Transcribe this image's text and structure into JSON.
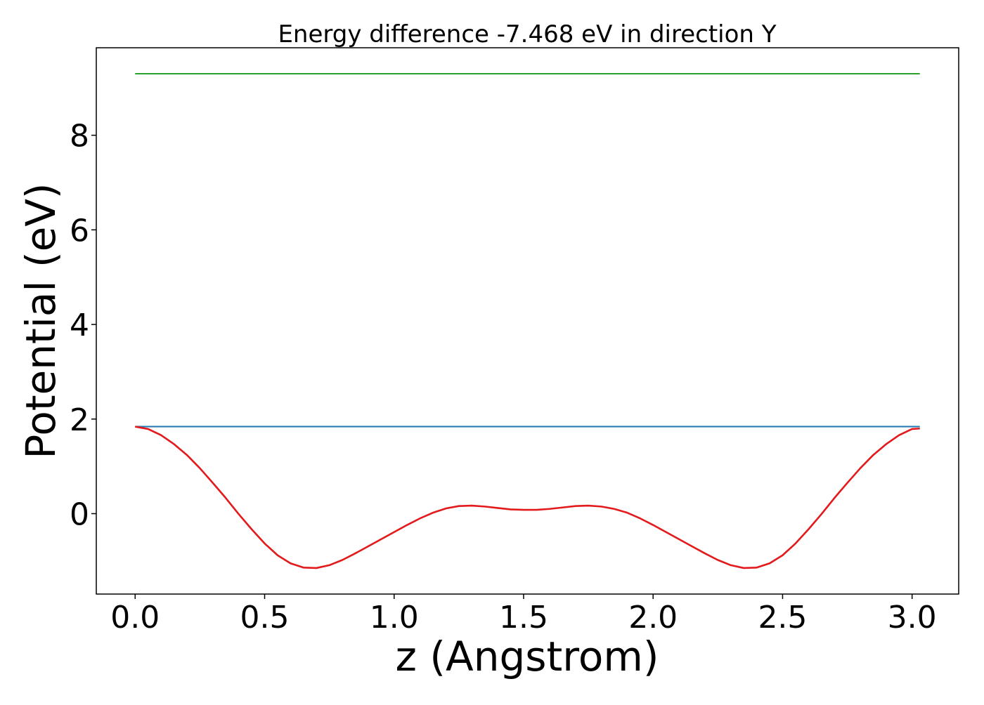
{
  "chart_data": {
    "type": "line",
    "title": "Energy difference -7.468 eV in direction Y",
    "xlabel": "z (Angstrom)",
    "ylabel": "Potential (eV)",
    "xlim": [
      -0.15,
      3.18
    ],
    "ylim": [
      -1.7,
      9.85
    ],
    "xticks": [
      0.0,
      0.5,
      1.0,
      1.5,
      2.0,
      2.5,
      3.0
    ],
    "xtick_labels": [
      "0.0",
      "0.5",
      "1.0",
      "1.5",
      "2.0",
      "2.5",
      "3.0"
    ],
    "yticks": [
      0,
      2,
      4,
      6,
      8
    ],
    "ytick_labels": [
      "0",
      "2",
      "4",
      "6",
      "8"
    ],
    "grid": false,
    "legend": false,
    "series": [
      {
        "color": "#2ca02c",
        "x": [
          0.0,
          3.03
        ],
        "y": [
          9.3,
          9.3
        ]
      },
      {
        "color": "#1f77b4",
        "x": [
          0.0,
          3.03
        ],
        "y": [
          1.84,
          1.84
        ]
      },
      {
        "color": "#e31a1c",
        "x": [
          0.0,
          0.05,
          0.1,
          0.15,
          0.2,
          0.25,
          0.3,
          0.35,
          0.4,
          0.45,
          0.5,
          0.55,
          0.6,
          0.65,
          0.7,
          0.75,
          0.8,
          0.85,
          0.9,
          0.95,
          1.0,
          1.05,
          1.1,
          1.15,
          1.2,
          1.25,
          1.3,
          1.35,
          1.4,
          1.45,
          1.5,
          1.55,
          1.6,
          1.65,
          1.7,
          1.75,
          1.8,
          1.85,
          1.9,
          1.95,
          2.0,
          2.05,
          2.1,
          2.15,
          2.2,
          2.25,
          2.3,
          2.35,
          2.4,
          2.45,
          2.5,
          2.55,
          2.6,
          2.65,
          2.7,
          2.75,
          2.8,
          2.85,
          2.9,
          2.95,
          3.0,
          3.03
        ],
        "y": [
          1.84,
          1.79,
          1.66,
          1.47,
          1.24,
          0.96,
          0.65,
          0.33,
          -0.01,
          -0.33,
          -0.63,
          -0.88,
          -1.05,
          -1.14,
          -1.15,
          -1.09,
          -0.98,
          -0.84,
          -0.69,
          -0.54,
          -0.39,
          -0.24,
          -0.1,
          0.02,
          0.11,
          0.16,
          0.17,
          0.15,
          0.12,
          0.09,
          0.08,
          0.08,
          0.1,
          0.13,
          0.16,
          0.17,
          0.15,
          0.1,
          0.02,
          -0.1,
          -0.24,
          -0.39,
          -0.54,
          -0.69,
          -0.84,
          -0.98,
          -1.09,
          -1.15,
          -1.14,
          -1.05,
          -0.88,
          -0.63,
          -0.33,
          -0.01,
          0.33,
          0.65,
          0.96,
          1.24,
          1.47,
          1.66,
          1.79,
          1.8
        ]
      }
    ]
  }
}
